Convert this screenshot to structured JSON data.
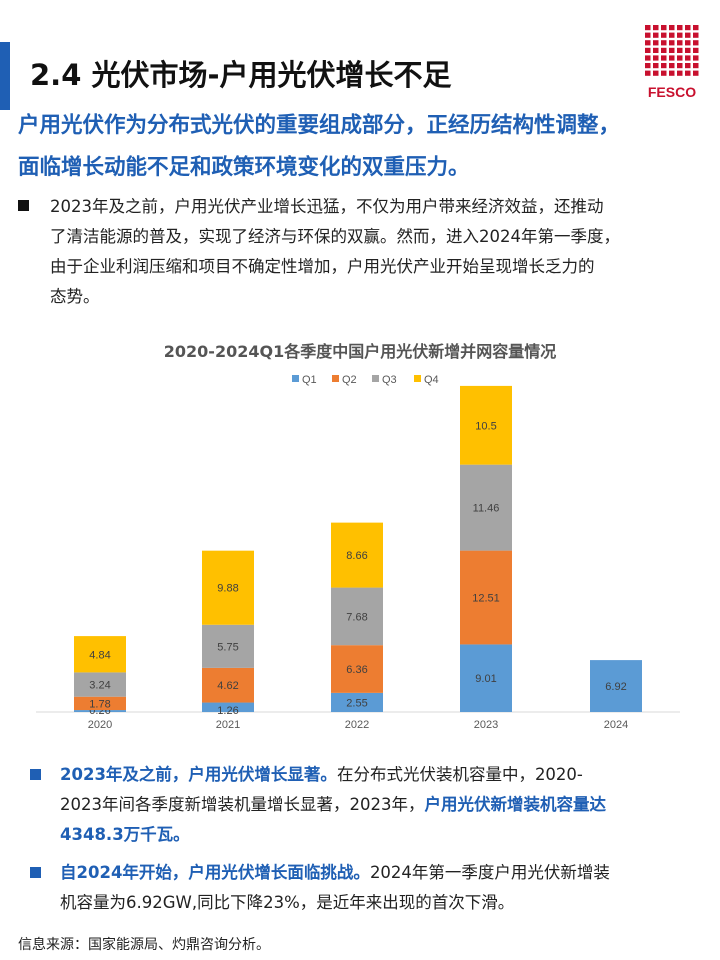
{
  "header": {
    "title": "2.4 光伏市场-户用光伏增长不足",
    "logo_text": "FESCO",
    "accent_color": "#1f5fb4",
    "logo_color": "#c8102e"
  },
  "subtitle": {
    "line1": "户用光伏作为分布式光伏的重要组成部分，正经历结构性调整，",
    "line2": "面临增长动能不足和政策环境变化的双重压力。"
  },
  "intro": {
    "lines": [
      "2023年及之前，户用光伏产业增长迅猛，不仅为用户带来经济效益，还推动",
      "了清洁能源的普及，实现了经济与环保的双赢。然而，进入2024年第一季度，",
      "由于企业利润压缩和项目不确定性增加，户用光伏产业开始呈现增长乏力的",
      "态势。"
    ]
  },
  "chart_data": {
    "type": "bar",
    "stacked": true,
    "title": "2020-2024Q1各季度中国户用光伏新增并网容量情况",
    "categories": [
      "2020",
      "2021",
      "2022",
      "2023",
      "2024"
    ],
    "series": [
      {
        "name": "Q1",
        "color": "#5b9bd5",
        "values": [
          0.26,
          1.26,
          2.55,
          9.01,
          6.92
        ]
      },
      {
        "name": "Q2",
        "color": "#ed7d31",
        "values": [
          1.78,
          4.62,
          6.36,
          12.51,
          null
        ]
      },
      {
        "name": "Q3",
        "color": "#a5a5a5",
        "values": [
          3.24,
          5.75,
          7.68,
          11.46,
          null
        ]
      },
      {
        "name": "Q4",
        "color": "#ffc000",
        "values": [
          4.84,
          9.88,
          8.66,
          10.5,
          null
        ]
      }
    ],
    "ylim": [
      0,
      44
    ],
    "grid": false,
    "legend": "top-center"
  },
  "bottom": {
    "item1": {
      "lines": [
        [
          {
            "t": "2023年及之前，户用光伏增长显著。",
            "hl": true
          },
          {
            "t": "在分布式光伏装机容量中，2020-",
            "hl": false
          }
        ],
        [
          {
            "t": "2023年间各季度新增装机量增长显著，2023年，",
            "hl": false
          },
          {
            "t": "户用光伏新增装机容量达",
            "hl": true
          }
        ],
        [
          {
            "t": "4348.3万千瓦。",
            "hl": true
          }
        ]
      ]
    },
    "item2": {
      "lines": [
        [
          {
            "t": "自2024年开始，户用光伏增长面临挑战。",
            "hl": true
          },
          {
            "t": "2024年第一季度户用光伏新增装",
            "hl": false
          }
        ],
        [
          {
            "t": "机容量为6.92GW,同比下降23%，是近年来出现的首次下滑。",
            "hl": false
          }
        ]
      ]
    }
  },
  "source": "信息来源：国家能源局、灼鼎咨询分析。"
}
